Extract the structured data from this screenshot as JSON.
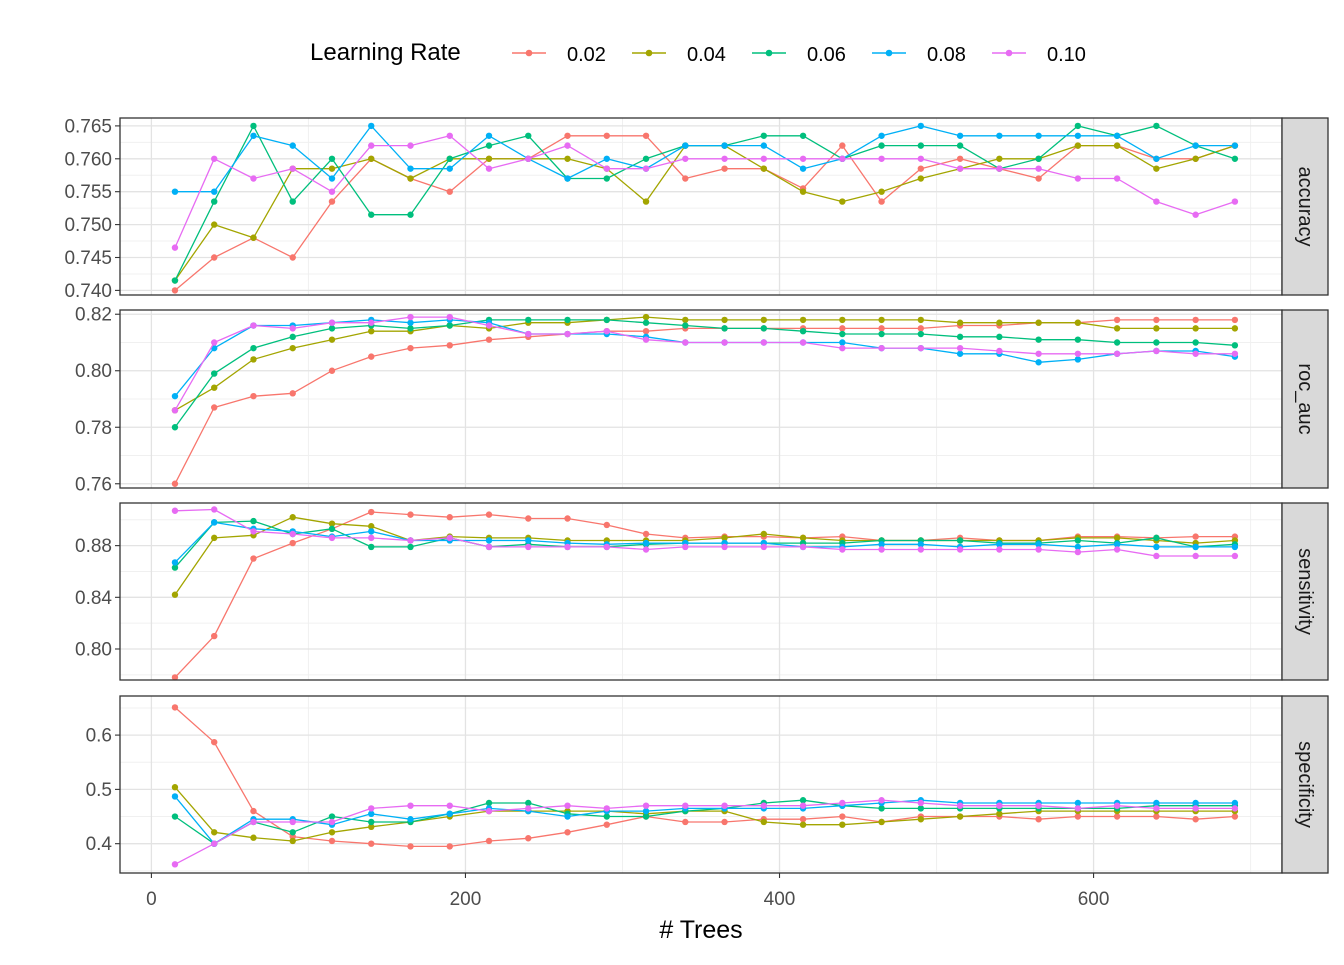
{
  "chart_data": {
    "type": "line",
    "xlabel": "# Trees",
    "xlim": [
      -20,
      720
    ],
    "xticks": [
      0,
      200,
      400,
      600
    ],
    "x": [
      15,
      40,
      65,
      90,
      115,
      140,
      165,
      190,
      215,
      240,
      265,
      290,
      315,
      340,
      365,
      390,
      415,
      440,
      465,
      490,
      515,
      540,
      565,
      590,
      615,
      640,
      665,
      690
    ],
    "legend": {
      "title": "Learning Rate",
      "position": "top"
    },
    "grid": true,
    "series_meta": [
      {
        "name": "0.02",
        "color": "#F8766D"
      },
      {
        "name": "0.04",
        "color": "#A3A500"
      },
      {
        "name": "0.06",
        "color": "#00BF7D"
      },
      {
        "name": "0.08",
        "color": "#00B0F6"
      },
      {
        "name": "0.10",
        "color": "#E76BF3"
      }
    ],
    "facets": [
      {
        "label": "accuracy",
        "ylim": [
          0.7393,
          0.7662
        ],
        "yticks": [
          0.74,
          0.745,
          0.75,
          0.755,
          0.76,
          0.765
        ],
        "ytick_labels": [
          "0.740",
          "0.745",
          "0.750",
          "0.755",
          "0.760",
          "0.765"
        ],
        "series": [
          {
            "name": "0.02",
            "values": [
              0.74,
              0.745,
              0.748,
              0.745,
              0.7535,
              0.76,
              0.757,
              0.755,
              0.76,
              0.76,
              0.7635,
              0.7635,
              0.7635,
              0.757,
              0.7585,
              0.7585,
              0.7555,
              0.762,
              0.7535,
              0.7585,
              0.76,
              0.7585,
              0.757,
              0.762,
              0.762,
              0.76,
              0.76,
              0.762
            ]
          },
          {
            "name": "0.04",
            "values": [
              0.7415,
              0.75,
              0.748,
              0.7585,
              0.7585,
              0.76,
              0.757,
              0.76,
              0.76,
              0.76,
              0.76,
              0.7585,
              0.7535,
              0.762,
              0.762,
              0.7585,
              0.755,
              0.7535,
              0.755,
              0.757,
              0.7585,
              0.76,
              0.76,
              0.762,
              0.762,
              0.7585,
              0.76,
              0.762
            ]
          },
          {
            "name": "0.06",
            "values": [
              0.7415,
              0.7535,
              0.765,
              0.7535,
              0.76,
              0.7515,
              0.7515,
              0.76,
              0.762,
              0.7635,
              0.757,
              0.757,
              0.76,
              0.762,
              0.762,
              0.7635,
              0.7635,
              0.76,
              0.762,
              0.762,
              0.762,
              0.7585,
              0.76,
              0.765,
              0.7635,
              0.765,
              0.762,
              0.76
            ]
          },
          {
            "name": "0.08",
            "values": [
              0.755,
              0.755,
              0.7635,
              0.762,
              0.757,
              0.765,
              0.7585,
              0.7585,
              0.7635,
              0.76,
              0.757,
              0.76,
              0.7585,
              0.762,
              0.762,
              0.762,
              0.7585,
              0.76,
              0.7635,
              0.765,
              0.7635,
              0.7635,
              0.7635,
              0.7635,
              0.7635,
              0.76,
              0.762,
              0.762
            ]
          },
          {
            "name": "0.10",
            "values": [
              0.7465,
              0.76,
              0.757,
              0.7585,
              0.755,
              0.762,
              0.762,
              0.7635,
              0.7585,
              0.76,
              0.762,
              0.7585,
              0.7585,
              0.76,
              0.76,
              0.76,
              0.76,
              0.76,
              0.76,
              0.76,
              0.7585,
              0.7585,
              0.7585,
              0.757,
              0.757,
              0.7535,
              0.7515,
              0.7535
            ]
          }
        ]
      },
      {
        "label": "roc_auc",
        "ylim": [
          0.7585,
          0.8215
        ],
        "yticks": [
          0.76,
          0.78,
          0.8,
          0.82
        ],
        "ytick_labels": [
          "0.76",
          "0.78",
          "0.80",
          "0.82"
        ],
        "series": [
          {
            "name": "0.02",
            "values": [
              0.76,
              0.787,
              0.791,
              0.792,
              0.8,
              0.805,
              0.808,
              0.809,
              0.811,
              0.812,
              0.813,
              0.814,
              0.814,
              0.815,
              0.815,
              0.815,
              0.815,
              0.815,
              0.815,
              0.815,
              0.816,
              0.816,
              0.817,
              0.817,
              0.818,
              0.818,
              0.818,
              0.818
            ]
          },
          {
            "name": "0.04",
            "values": [
              0.786,
              0.794,
              0.804,
              0.808,
              0.811,
              0.814,
              0.814,
              0.816,
              0.815,
              0.817,
              0.817,
              0.818,
              0.819,
              0.818,
              0.818,
              0.818,
              0.818,
              0.818,
              0.818,
              0.818,
              0.817,
              0.817,
              0.817,
              0.817,
              0.815,
              0.815,
              0.815,
              0.815
            ]
          },
          {
            "name": "0.06",
            "values": [
              0.78,
              0.799,
              0.808,
              0.812,
              0.815,
              0.816,
              0.815,
              0.816,
              0.818,
              0.818,
              0.818,
              0.818,
              0.817,
              0.816,
              0.815,
              0.815,
              0.814,
              0.813,
              0.813,
              0.813,
              0.812,
              0.812,
              0.811,
              0.811,
              0.81,
              0.81,
              0.81,
              0.809
            ]
          },
          {
            "name": "0.08",
            "values": [
              0.791,
              0.808,
              0.816,
              0.816,
              0.817,
              0.818,
              0.817,
              0.818,
              0.817,
              0.813,
              0.813,
              0.813,
              0.812,
              0.81,
              0.81,
              0.81,
              0.81,
              0.81,
              0.808,
              0.808,
              0.806,
              0.806,
              0.803,
              0.804,
              0.806,
              0.807,
              0.807,
              0.805
            ]
          },
          {
            "name": "0.10",
            "values": [
              0.786,
              0.81,
              0.816,
              0.815,
              0.817,
              0.817,
              0.819,
              0.819,
              0.816,
              0.813,
              0.813,
              0.814,
              0.811,
              0.81,
              0.81,
              0.81,
              0.81,
              0.808,
              0.808,
              0.808,
              0.808,
              0.807,
              0.806,
              0.806,
              0.806,
              0.807,
              0.806,
              0.806
            ]
          }
        ]
      },
      {
        "label": "sensitivity",
        "ylim": [
          0.776,
          0.913
        ],
        "yticks": [
          0.8,
          0.84,
          0.88
        ],
        "ytick_labels": [
          "0.80",
          "0.84",
          "0.88"
        ],
        "series": [
          {
            "name": "0.02",
            "values": [
              0.778,
              0.81,
              0.87,
              0.882,
              0.893,
              0.906,
              0.904,
              0.902,
              0.904,
              0.901,
              0.901,
              0.896,
              0.889,
              0.886,
              0.887,
              0.887,
              0.886,
              0.887,
              0.884,
              0.884,
              0.886,
              0.884,
              0.884,
              0.887,
              0.887,
              0.886,
              0.887,
              0.887
            ]
          },
          {
            "name": "0.04",
            "values": [
              0.842,
              0.886,
              0.888,
              0.902,
              0.897,
              0.895,
              0.884,
              0.887,
              0.886,
              0.886,
              0.884,
              0.884,
              0.884,
              0.884,
              0.886,
              0.889,
              0.886,
              0.884,
              0.884,
              0.884,
              0.884,
              0.884,
              0.884,
              0.886,
              0.886,
              0.884,
              0.882,
              0.884
            ]
          },
          {
            "name": "0.06",
            "values": [
              0.863,
              0.898,
              0.899,
              0.889,
              0.893,
              0.879,
              0.879,
              0.886,
              0.879,
              0.881,
              0.879,
              0.879,
              0.881,
              0.882,
              0.882,
              0.882,
              0.882,
              0.882,
              0.884,
              0.884,
              0.884,
              0.882,
              0.882,
              0.884,
              0.882,
              0.886,
              0.879,
              0.881
            ]
          },
          {
            "name": "0.08",
            "values": [
              0.867,
              0.898,
              0.893,
              0.891,
              0.887,
              0.891,
              0.884,
              0.884,
              0.884,
              0.884,
              0.882,
              0.881,
              0.882,
              0.882,
              0.882,
              0.882,
              0.879,
              0.879,
              0.881,
              0.881,
              0.879,
              0.881,
              0.881,
              0.879,
              0.881,
              0.879,
              0.879,
              0.879
            ]
          },
          {
            "name": "0.10",
            "values": [
              0.907,
              0.908,
              0.891,
              0.889,
              0.886,
              0.886,
              0.884,
              0.886,
              0.879,
              0.879,
              0.879,
              0.879,
              0.877,
              0.879,
              0.879,
              0.879,
              0.879,
              0.877,
              0.877,
              0.877,
              0.877,
              0.877,
              0.877,
              0.875,
              0.877,
              0.872,
              0.872,
              0.872
            ]
          }
        ]
      },
      {
        "label": "specificity",
        "ylim": [
          0.346,
          0.672
        ],
        "yticks": [
          0.4,
          0.5,
          0.6
        ],
        "ytick_labels": [
          "0.4",
          "0.5",
          "0.6"
        ],
        "series": [
          {
            "name": "0.02",
            "values": [
              0.651,
              0.587,
              0.46,
              0.413,
              0.405,
              0.4,
              0.395,
              0.395,
              0.405,
              0.41,
              0.421,
              0.435,
              0.45,
              0.44,
              0.44,
              0.445,
              0.445,
              0.45,
              0.44,
              0.45,
              0.45,
              0.45,
              0.445,
              0.45,
              0.45,
              0.45,
              0.445,
              0.45
            ]
          },
          {
            "name": "0.04",
            "values": [
              0.504,
              0.421,
              0.411,
              0.405,
              0.421,
              0.431,
              0.44,
              0.45,
              0.46,
              0.46,
              0.46,
              0.46,
              0.455,
              0.46,
              0.46,
              0.44,
              0.435,
              0.435,
              0.44,
              0.445,
              0.45,
              0.455,
              0.46,
              0.46,
              0.46,
              0.46,
              0.46,
              0.46
            ]
          },
          {
            "name": "0.06",
            "values": [
              0.45,
              0.4,
              0.44,
              0.421,
              0.45,
              0.44,
              0.44,
              0.455,
              0.475,
              0.475,
              0.455,
              0.45,
              0.45,
              0.46,
              0.465,
              0.475,
              0.48,
              0.47,
              0.465,
              0.465,
              0.465,
              0.465,
              0.465,
              0.465,
              0.465,
              0.47,
              0.47,
              0.47
            ]
          },
          {
            "name": "0.08",
            "values": [
              0.487,
              0.4,
              0.445,
              0.445,
              0.435,
              0.455,
              0.445,
              0.455,
              0.465,
              0.46,
              0.45,
              0.46,
              0.46,
              0.465,
              0.465,
              0.465,
              0.465,
              0.47,
              0.475,
              0.48,
              0.475,
              0.475,
              0.475,
              0.475,
              0.475,
              0.475,
              0.475,
              0.475
            ]
          },
          {
            "name": "0.10",
            "values": [
              0.362,
              0.4,
              0.44,
              0.44,
              0.44,
              0.465,
              0.47,
              0.47,
              0.46,
              0.465,
              0.47,
              0.465,
              0.47,
              0.47,
              0.47,
              0.47,
              0.47,
              0.475,
              0.48,
              0.475,
              0.47,
              0.47,
              0.47,
              0.465,
              0.47,
              0.465,
              0.465,
              0.465
            ]
          }
        ]
      }
    ]
  }
}
